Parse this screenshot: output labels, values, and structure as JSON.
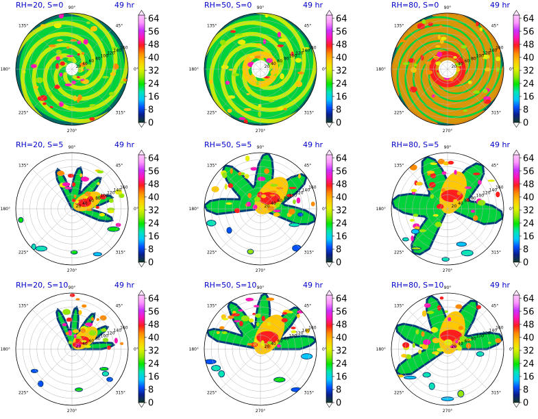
{
  "chart_data": {
    "type": "heatmap",
    "description_axis": "polar",
    "time_label": "49 hr",
    "colorbar": {
      "ticks": [
        0,
        8,
        16,
        24,
        32,
        40,
        48,
        56,
        64
      ],
      "colors": [
        "#143c28",
        "#0a1e8c",
        "#0050ff",
        "#00c8ff",
        "#00e6b4",
        "#00e600",
        "#96e600",
        "#e6f000",
        "#ffc800",
        "#ff8c00",
        "#ff1e1e",
        "#ff14b4",
        "#c832ff",
        "#ff96ff",
        "#ffc8ff"
      ]
    },
    "angle_labels": [
      "0°",
      "45°",
      "90°",
      "135°",
      "180°",
      "225°",
      "270°",
      "315°"
    ],
    "radial_labels": [
      "20",
      "40",
      "60",
      "80",
      "100",
      "120",
      "140",
      "160"
    ],
    "panels": [
      {
        "title": "RH=20, S=0",
        "time": "49 hr",
        "rh": 20,
        "shear": 0
      },
      {
        "title": "RH=50, S=0",
        "time": "49 hr",
        "rh": 50,
        "shear": 0
      },
      {
        "title": "RH=80, S=0",
        "time": "49 hr",
        "rh": 80,
        "shear": 0
      },
      {
        "title": "RH=20, S=5",
        "time": "49 hr",
        "rh": 20,
        "shear": 5
      },
      {
        "title": "RH=50, S=5",
        "time": "49 hr",
        "rh": 50,
        "shear": 5
      },
      {
        "title": "RH=80, S=5",
        "time": "49 hr",
        "rh": 80,
        "shear": 5
      },
      {
        "title": "RH=20, S=10",
        "time": "49 hr",
        "rh": 20,
        "shear": 10
      },
      {
        "title": "RH=50, S=10",
        "time": "49 hr",
        "rh": 50,
        "shear": 10
      },
      {
        "title": "RH=80, S=10",
        "time": "49 hr",
        "rh": 80,
        "shear": 10
      }
    ]
  }
}
